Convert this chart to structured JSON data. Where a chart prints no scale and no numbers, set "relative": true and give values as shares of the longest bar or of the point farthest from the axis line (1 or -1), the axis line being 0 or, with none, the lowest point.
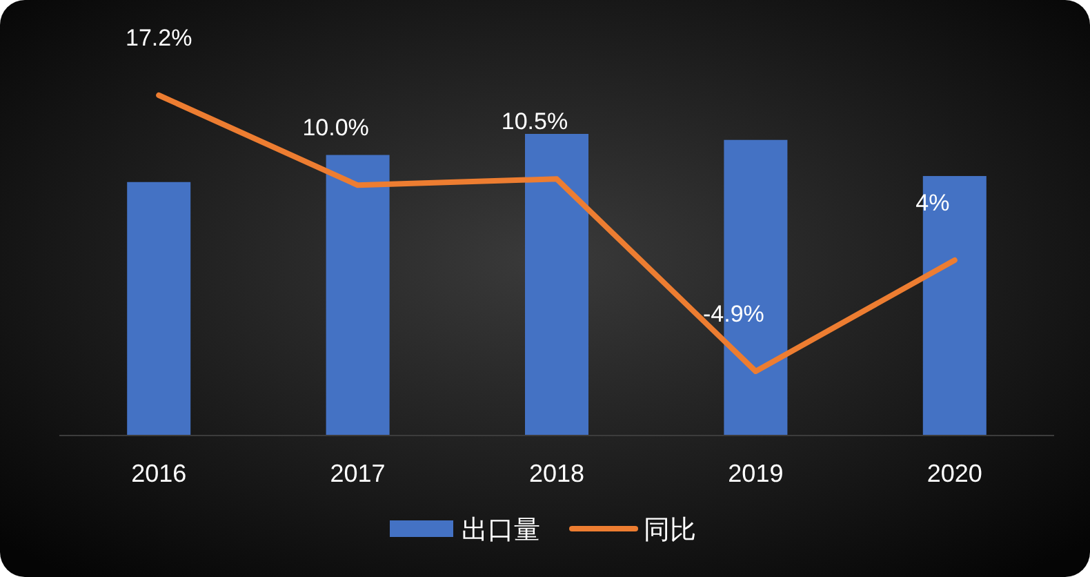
{
  "chart_data": [
    {
      "type": "bar",
      "categories": [
        "2016",
        "2017",
        "2018",
        "2019",
        "2020"
      ],
      "relative": true,
      "legend": "bottom",
      "series": [
        {
          "name": "出口量",
          "color": "#4472c4",
          "values": [
            0.84,
            0.93,
            1,
            0.98,
            0.86
          ]
        }
      ]
    },
    {
      "type": "line",
      "categories": [
        null,
        null,
        null,
        null,
        null
      ],
      "legend": "bottom",
      "series": [
        {
          "name": "同比",
          "color": "#ed7d31",
          "values": [
            17.2,
            10.0,
            10.5,
            -4.9,
            4
          ],
          "value_labels": [
            "17.2%",
            "10.0%",
            "10.5%",
            "-4.9%",
            "4%"
          ]
        }
      ]
    }
  ]
}
